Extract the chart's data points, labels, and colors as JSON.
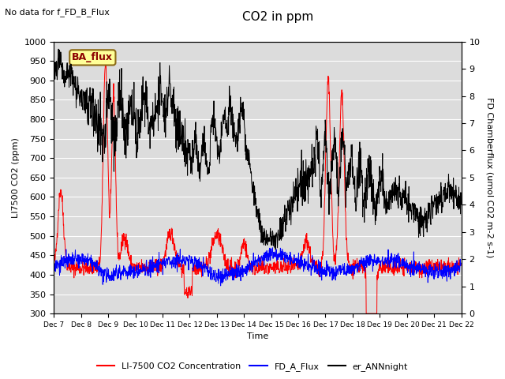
{
  "title": "CO2 in ppm",
  "top_left_text": "No data for f_FD_B_Flux",
  "ylabel_left": "LI7500 CO2 (ppm)",
  "ylabel_right": "FD Chamberflux (umol CO2 m-2 s-1)",
  "xlabel": "Time",
  "ylim_left": [
    300,
    1000
  ],
  "ylim_right": [
    0.0,
    10.0
  ],
  "yticks_left": [
    300,
    350,
    400,
    450,
    500,
    550,
    600,
    650,
    700,
    750,
    800,
    850,
    900,
    950,
    1000
  ],
  "yticks_right": [
    0.0,
    1.0,
    2.0,
    3.0,
    4.0,
    5.0,
    6.0,
    7.0,
    8.0,
    9.0,
    10.0
  ],
  "n_points": 1500,
  "color_red": "#FF0000",
  "color_blue": "#0000FF",
  "color_black": "#000000",
  "legend_label_red": "LI-7500 CO2 Concentration",
  "legend_label_blue": "FD_A_Flux",
  "legend_label_black": "er_ANNnight",
  "ba_flux_label": "BA_flux",
  "bg_color": "#DCDCDC",
  "linewidth": 0.7,
  "grid_color": "#FFFFFF",
  "seed": 42
}
